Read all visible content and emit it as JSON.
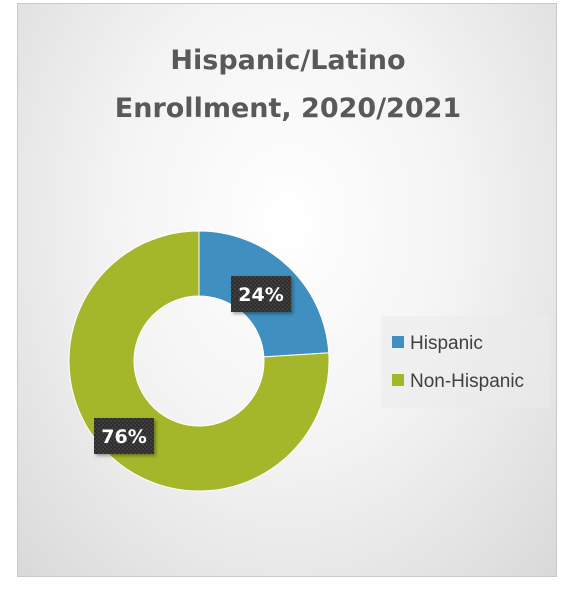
{
  "chart_data": {
    "type": "pie",
    "variant": "doughnut",
    "title": "Hispanic/Latino Enrollment, 2020/2021",
    "title_lines": [
      "Hispanic/Latino",
      "Enrollment, 2020/2021"
    ],
    "categories": [
      "Hispanic",
      "Non-Hispanic"
    ],
    "values": [
      24,
      76
    ],
    "data_labels": [
      "24%",
      "76%"
    ],
    "colors": [
      "#3f8fc0",
      "#a4b72a"
    ],
    "legend_position": "right"
  }
}
